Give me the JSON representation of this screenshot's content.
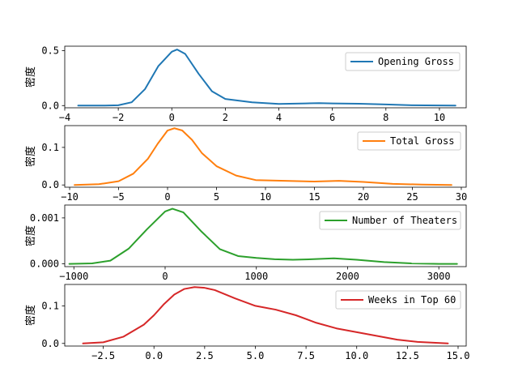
{
  "chart_data": [
    {
      "type": "line",
      "title": "",
      "xlabel": "",
      "ylabel": "密度",
      "xlim": [
        -4.0,
        11.0
      ],
      "ylim": [
        -0.02,
        0.54
      ],
      "xticks": [
        -4,
        -2,
        0,
        2,
        4,
        6,
        8,
        10
      ],
      "xtick_labels": [
        "−4",
        "−2",
        "0",
        "2",
        "4",
        "6",
        "8",
        "10"
      ],
      "yticks": [
        0.0,
        0.5
      ],
      "ytick_labels": [
        "0.0",
        "0.5"
      ],
      "legend": "top-right",
      "grid": false,
      "series": [
        {
          "name": "Opening Gross",
          "color": "#1f77b4",
          "x": [
            -3.5,
            -2.5,
            -2.0,
            -1.5,
            -1.0,
            -0.5,
            0.0,
            0.2,
            0.5,
            1.0,
            1.5,
            2.0,
            3.0,
            4.0,
            5.0,
            5.5,
            6.0,
            7.0,
            8.0,
            9.0,
            10.0,
            10.6
          ],
          "y": [
            0.0,
            0.0,
            0.003,
            0.03,
            0.15,
            0.36,
            0.49,
            0.51,
            0.47,
            0.29,
            0.13,
            0.06,
            0.03,
            0.015,
            0.02,
            0.022,
            0.02,
            0.017,
            0.01,
            0.003,
            0.001,
            0.0
          ]
        }
      ]
    },
    {
      "type": "line",
      "title": "",
      "xlabel": "",
      "ylabel": "密度",
      "xlim": [
        -10.5,
        30.5
      ],
      "ylim": [
        -0.006,
        0.158
      ],
      "xticks": [
        -10,
        -5,
        0,
        5,
        10,
        15,
        20,
        25,
        30
      ],
      "xtick_labels": [
        "−10",
        "−5",
        "0",
        "5",
        "10",
        "15",
        "20",
        "25",
        "30"
      ],
      "yticks": [
        0.0,
        0.1
      ],
      "ytick_labels": [
        "0.0",
        "0.1"
      ],
      "legend": "top-right",
      "grid": false,
      "series": [
        {
          "name": "Total Gross",
          "color": "#ff7f0e",
          "x": [
            -9.5,
            -7.0,
            -5.0,
            -3.5,
            -2.0,
            -1.0,
            0.0,
            0.7,
            1.5,
            2.5,
            3.5,
            5.0,
            7.0,
            9.0,
            12.0,
            15.0,
            17.5,
            20.0,
            23.0,
            26.0,
            29.0
          ],
          "y": [
            0.0,
            0.002,
            0.01,
            0.03,
            0.07,
            0.11,
            0.145,
            0.151,
            0.145,
            0.12,
            0.085,
            0.05,
            0.025,
            0.013,
            0.011,
            0.009,
            0.011,
            0.008,
            0.003,
            0.001,
            0.0
          ]
        }
      ]
    },
    {
      "type": "line",
      "title": "",
      "xlabel": "",
      "ylabel": "密度",
      "xlim": [
        -1100,
        3300
      ],
      "ylim": [
        -6e-05,
        0.00128
      ],
      "xticks": [
        -1000,
        0,
        1000,
        2000,
        3000
      ],
      "xtick_labels": [
        "−1000",
        "0",
        "1000",
        "2000",
        "3000"
      ],
      "yticks": [
        0.0,
        0.001
      ],
      "ytick_labels": [
        "0.000",
        "0.001"
      ],
      "legend": "top-right",
      "grid": false,
      "series": [
        {
          "name": "Number of Theaters",
          "color": "#2ca02c",
          "x": [
            -1050,
            -800,
            -600,
            -400,
            -200,
            0,
            80,
            200,
            400,
            600,
            800,
            1000,
            1200,
            1400,
            1600,
            1850,
            2100,
            2400,
            2700,
            3000,
            3200
          ],
          "y": [
            0.0,
            1e-05,
            7e-05,
            0.00033,
            0.00075,
            0.00114,
            0.0012,
            0.00112,
            0.0007,
            0.00032,
            0.00017,
            0.00013,
            0.0001,
            9e-05,
            0.0001,
            0.00012,
            9e-05,
            4e-05,
            1e-05,
            0.0,
            0.0
          ]
        }
      ]
    },
    {
      "type": "line",
      "title": "",
      "xlabel": "",
      "ylabel": "密度",
      "xlim": [
        -4.4,
        15.4
      ],
      "ylim": [
        -0.007,
        0.157
      ],
      "xticks": [
        -2.5,
        0.0,
        2.5,
        5.0,
        7.5,
        10.0,
        12.5,
        15.0
      ],
      "xtick_labels": [
        "−2.5",
        "0.0",
        "2.5",
        "5.0",
        "7.5",
        "10.0",
        "12.5",
        "15.0"
      ],
      "yticks": [
        0.0,
        0.1
      ],
      "ytick_labels": [
        "0.0",
        "0.1"
      ],
      "legend": "top-right",
      "grid": false,
      "series": [
        {
          "name": "Weeks in Top 60",
          "color": "#d62728",
          "x": [
            -3.5,
            -2.5,
            -1.5,
            -0.5,
            0.0,
            0.5,
            1.0,
            1.5,
            2.0,
            2.5,
            3.0,
            4.0,
            5.0,
            6.0,
            7.0,
            8.0,
            9.0,
            10.0,
            11.0,
            12.0,
            13.0,
            14.5
          ],
          "y": [
            0.0,
            0.003,
            0.018,
            0.05,
            0.075,
            0.105,
            0.13,
            0.145,
            0.15,
            0.148,
            0.142,
            0.12,
            0.1,
            0.09,
            0.075,
            0.055,
            0.04,
            0.03,
            0.02,
            0.01,
            0.004,
            0.0
          ]
        }
      ]
    }
  ]
}
